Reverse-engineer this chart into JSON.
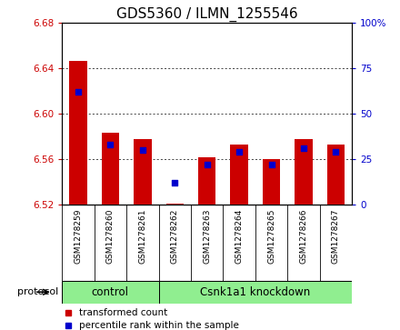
{
  "title": "GDS5360 / ILMN_1255546",
  "samples": [
    "GSM1278259",
    "GSM1278260",
    "GSM1278261",
    "GSM1278262",
    "GSM1278263",
    "GSM1278264",
    "GSM1278265",
    "GSM1278266",
    "GSM1278267"
  ],
  "transformed_count": [
    6.647,
    6.583,
    6.578,
    6.521,
    6.562,
    6.573,
    6.56,
    6.578,
    6.573
  ],
  "percentile_rank": [
    62,
    33,
    30,
    12,
    22,
    29,
    22,
    31,
    29
  ],
  "ylim_left": [
    6.52,
    6.68
  ],
  "ylim_right": [
    0,
    100
  ],
  "yticks_left": [
    6.52,
    6.56,
    6.6,
    6.64,
    6.68
  ],
  "yticks_right": [
    0,
    25,
    50,
    75,
    100
  ],
  "control_count": 3,
  "bar_color": "#CC0000",
  "dot_color": "#0000CC",
  "bar_width": 0.55,
  "protocol_label": "protocol",
  "legend_items": [
    {
      "label": "transformed count",
      "color": "#CC0000"
    },
    {
      "label": "percentile rank within the sample",
      "color": "#0000CC"
    }
  ],
  "left_tick_color": "#CC0000",
  "right_tick_color": "#0000CC",
  "title_fontsize": 11,
  "tick_fontsize": 7.5,
  "sample_fontsize": 6.5,
  "group_label_fontsize": 8.5,
  "gray_bg": "#d8d8d8",
  "green_bg": "#90EE90"
}
